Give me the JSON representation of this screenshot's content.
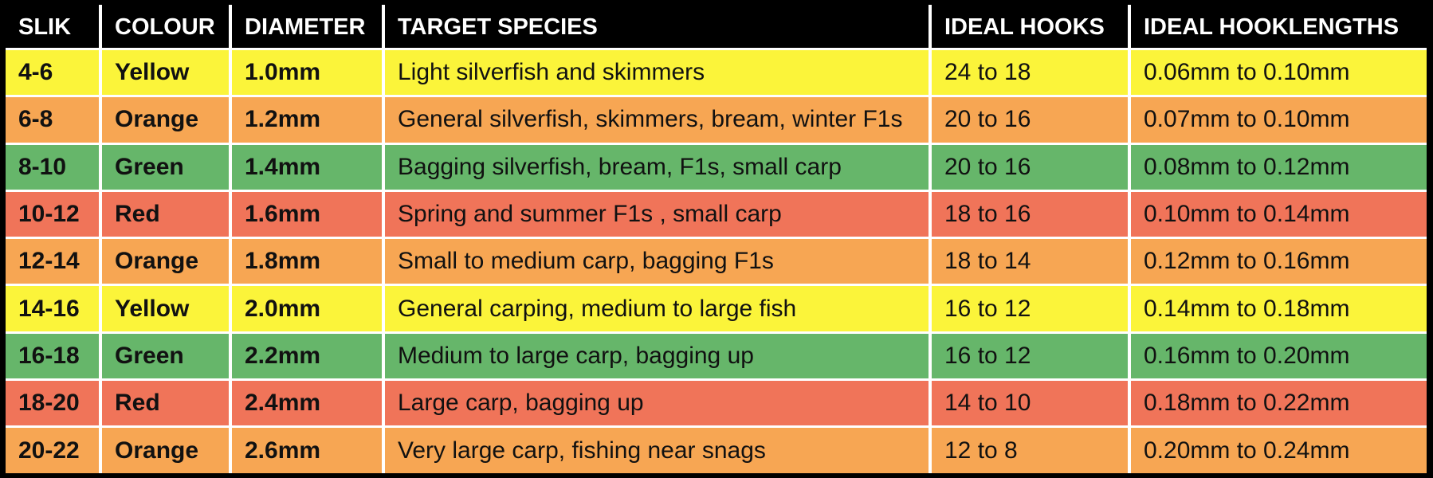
{
  "table": {
    "headers": [
      "SLIK",
      "COLOUR",
      "DIAMETER",
      "TARGET SPECIES",
      "IDEAL HOOKS",
      "IDEAL HOOKLENGTHS"
    ],
    "rows": [
      {
        "slik": "4-6",
        "colour": "Yellow",
        "diameter": "1.0mm",
        "species": "Light silverfish and skimmers",
        "hooks": "24 to 18",
        "hooklengths": "0.06mm to 0.10mm",
        "row_color": "#fbf43a"
      },
      {
        "slik": "6-8",
        "colour": "Orange",
        "diameter": "1.2mm",
        "species": "General silverfish, skimmers, bream, winter F1s",
        "hooks": "20 to 16",
        "hooklengths": "0.07mm to 0.10mm",
        "row_color": "#f7a653"
      },
      {
        "slik": "8-10",
        "colour": "Green",
        "diameter": "1.4mm",
        "species": "Bagging silverfish, bream, F1s, small carp",
        "hooks": "20 to 16",
        "hooklengths": "0.08mm to 0.12mm",
        "row_color": "#66b66a"
      },
      {
        "slik": "10-12",
        "colour": "Red",
        "diameter": "1.6mm",
        "species": "Spring and summer F1s , small carp",
        "hooks": "18 to 16",
        "hooklengths": "0.10mm to 0.14mm",
        "row_color": "#f07459"
      },
      {
        "slik": "12-14",
        "colour": "Orange",
        "diameter": "1.8mm",
        "species": "Small to medium carp, bagging F1s",
        "hooks": "18 to 14",
        "hooklengths": "0.12mm to 0.16mm",
        "row_color": "#f7a653"
      },
      {
        "slik": "14-16",
        "colour": "Yellow",
        "diameter": "2.0mm",
        "species": "General carping, medium to large fish",
        "hooks": "16 to 12",
        "hooklengths": "0.14mm to 0.18mm",
        "row_color": "#fbf43a"
      },
      {
        "slik": "16-18",
        "colour": "Green",
        "diameter": "2.2mm",
        "species": "Medium to large carp, bagging up",
        "hooks": "16 to 12",
        "hooklengths": "0.16mm to 0.20mm",
        "row_color": "#66b66a"
      },
      {
        "slik": "18-20",
        "colour": "Red",
        "diameter": "2.4mm",
        "species": "Large carp, bagging up",
        "hooks": "14 to 10",
        "hooklengths": "0.18mm to 0.22mm",
        "row_color": "#f07459"
      },
      {
        "slik": "20-22",
        "colour": "Orange",
        "diameter": "2.6mm",
        "species": "Very large carp, fishing near snags",
        "hooks": "12 to 8",
        "hooklengths": "0.20mm to 0.24mm",
        "row_color": "#f7a653"
      }
    ]
  }
}
